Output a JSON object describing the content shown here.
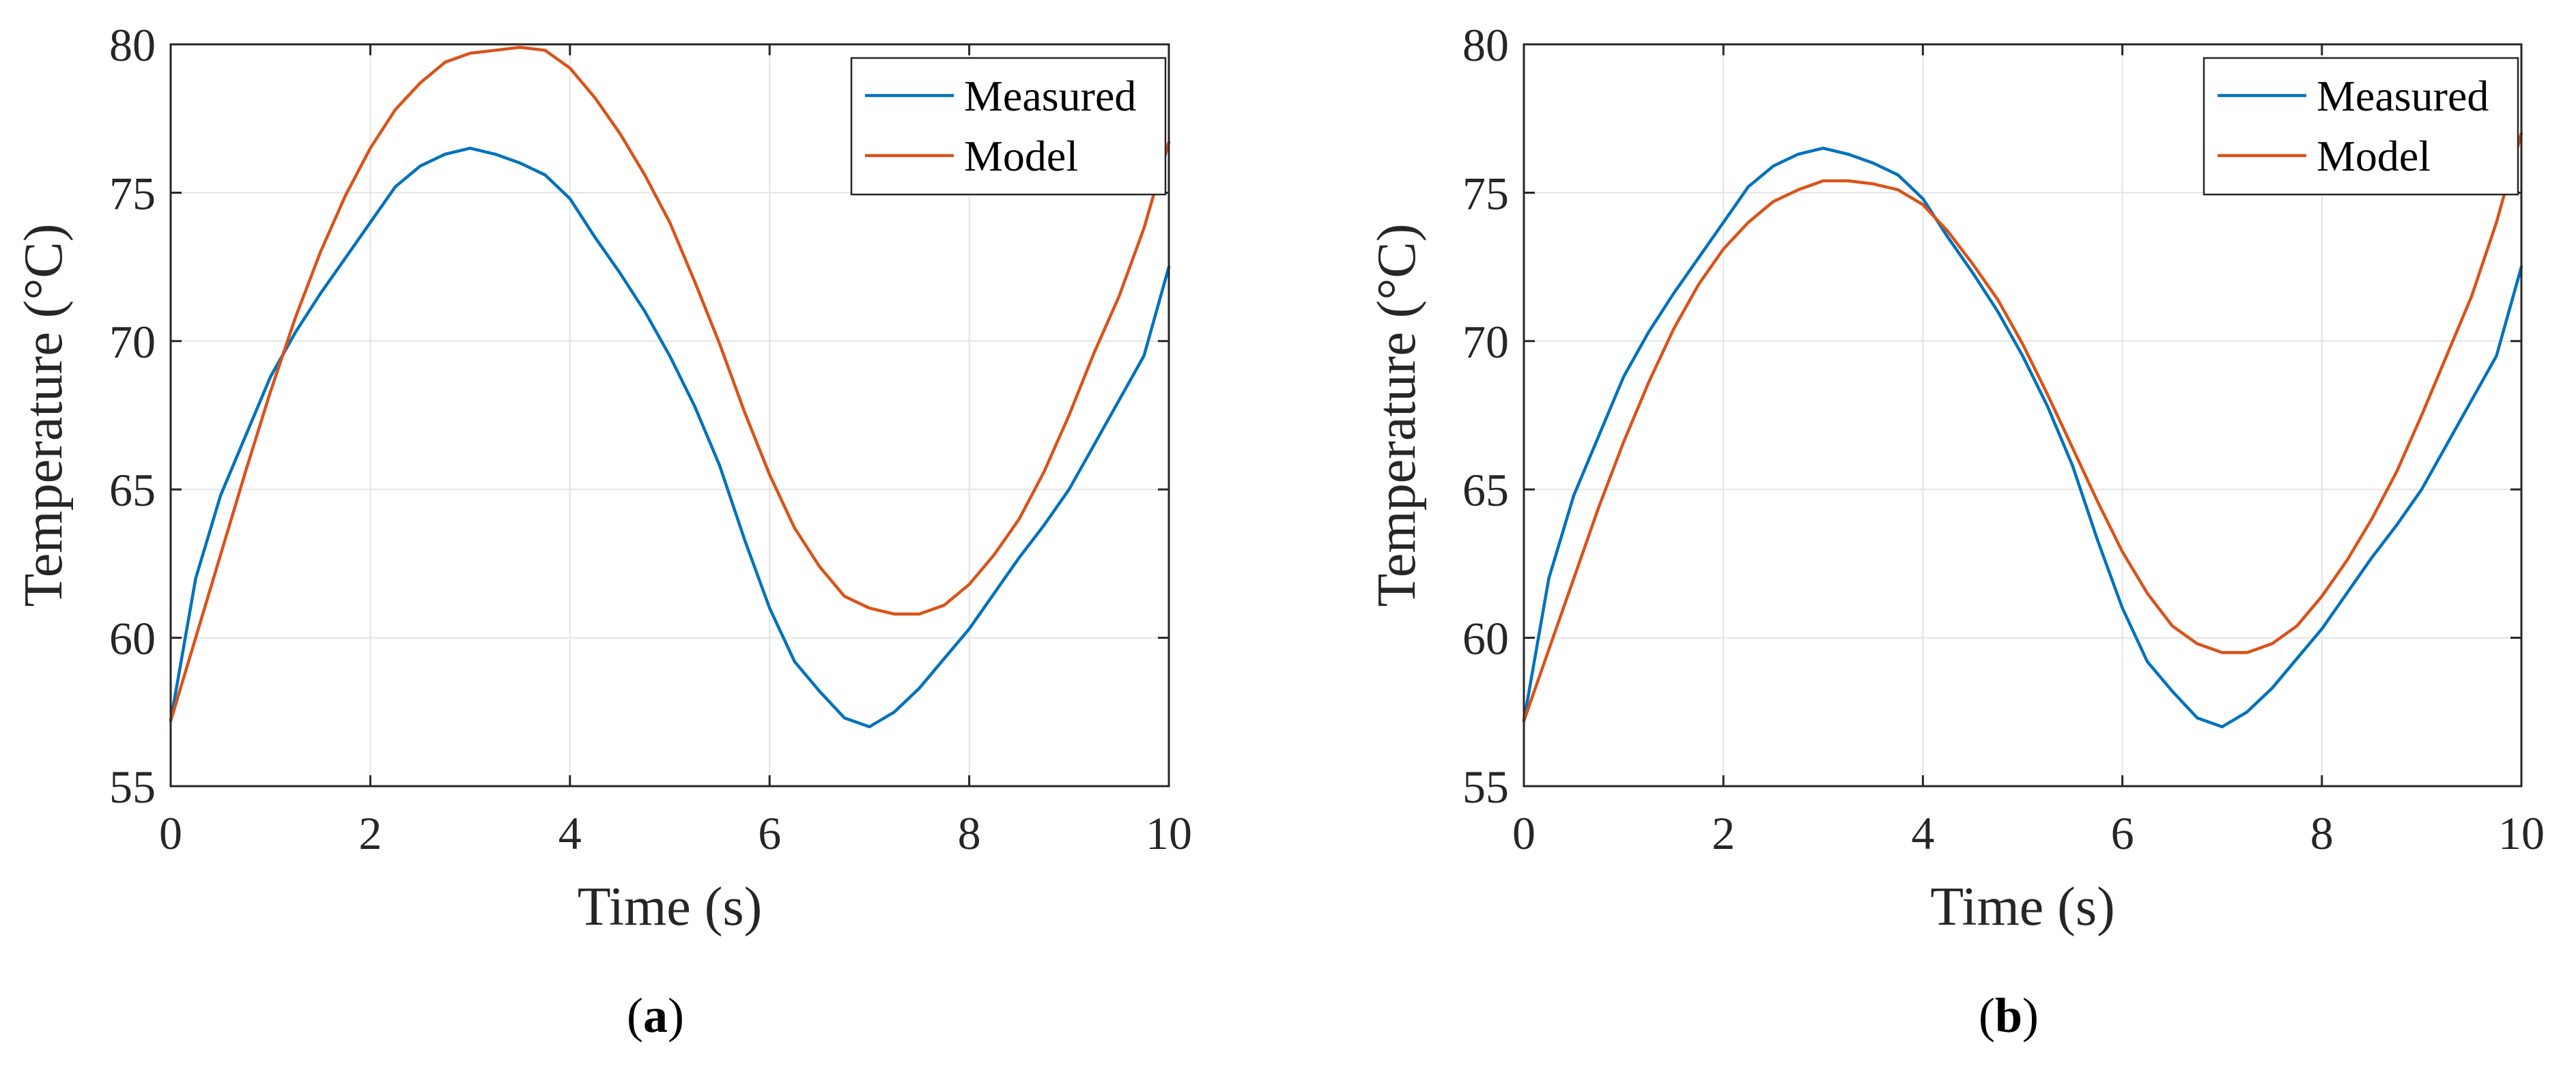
{
  "chart_data": [
    {
      "type": "line",
      "panel_label": "a",
      "xlabel": "Time (s)",
      "ylabel": "Temperature (°C)",
      "xlim": [
        0,
        10
      ],
      "ylim": [
        55,
        80
      ],
      "xticks": [
        0,
        2,
        4,
        6,
        8,
        10
      ],
      "yticks": [
        55,
        60,
        65,
        70,
        75,
        80
      ],
      "grid": true,
      "legend": "top-right",
      "series": [
        {
          "name": "Measured",
          "color": "#0072BD",
          "x": [
            0,
            0.25,
            0.5,
            0.75,
            1.0,
            1.25,
            1.5,
            1.75,
            2.0,
            2.25,
            2.5,
            2.75,
            3.0,
            3.25,
            3.5,
            3.75,
            4.0,
            4.25,
            4.5,
            4.75,
            5.0,
            5.25,
            5.5,
            5.75,
            6.0,
            6.25,
            6.5,
            6.75,
            7.0,
            7.25,
            7.5,
            7.75,
            8.0,
            8.25,
            8.5,
            8.75,
            9.0,
            9.25,
            9.5,
            9.75,
            10.0
          ],
          "y": [
            57.2,
            62.0,
            64.8,
            66.8,
            68.8,
            70.3,
            71.6,
            72.8,
            74.0,
            75.2,
            75.9,
            76.3,
            76.5,
            76.3,
            76.0,
            75.6,
            74.8,
            73.5,
            72.3,
            71.0,
            69.5,
            67.8,
            65.8,
            63.3,
            61.0,
            59.2,
            58.2,
            57.3,
            57.0,
            57.5,
            58.3,
            59.3,
            60.3,
            61.5,
            62.7,
            63.8,
            65.0,
            66.5,
            68.0,
            69.5,
            72.5
          ]
        },
        {
          "name": "Model",
          "color": "#D95319",
          "x": [
            0,
            0.25,
            0.5,
            0.75,
            1.0,
            1.25,
            1.5,
            1.75,
            2.0,
            2.25,
            2.5,
            2.75,
            3.0,
            3.25,
            3.5,
            3.75,
            4.0,
            4.25,
            4.5,
            4.75,
            5.0,
            5.25,
            5.5,
            5.75,
            6.0,
            6.25,
            6.5,
            6.75,
            7.0,
            7.25,
            7.5,
            7.75,
            8.0,
            8.25,
            8.5,
            8.75,
            9.0,
            9.25,
            9.5,
            9.75,
            10.0
          ],
          "y": [
            57.2,
            60.0,
            62.8,
            65.6,
            68.3,
            70.8,
            73.0,
            74.9,
            76.5,
            77.8,
            78.7,
            79.4,
            79.7,
            79.8,
            79.9,
            79.8,
            79.2,
            78.2,
            77.0,
            75.6,
            74.0,
            72.0,
            69.9,
            67.6,
            65.5,
            63.7,
            62.4,
            61.4,
            61.0,
            60.8,
            60.8,
            61.1,
            61.8,
            62.8,
            64.0,
            65.6,
            67.5,
            69.6,
            71.5,
            73.8,
            76.7
          ]
        }
      ]
    },
    {
      "type": "line",
      "panel_label": "b",
      "xlabel": "Time (s)",
      "ylabel": "Temperature (°C)",
      "xlim": [
        0,
        10
      ],
      "ylim": [
        55,
        80
      ],
      "xticks": [
        0,
        2,
        4,
        6,
        8,
        10
      ],
      "yticks": [
        55,
        60,
        65,
        70,
        75,
        80
      ],
      "grid": true,
      "legend": "top-right",
      "series": [
        {
          "name": "Measured",
          "color": "#0072BD",
          "x": [
            0,
            0.25,
            0.5,
            0.75,
            1.0,
            1.25,
            1.5,
            1.75,
            2.0,
            2.25,
            2.5,
            2.75,
            3.0,
            3.25,
            3.5,
            3.75,
            4.0,
            4.25,
            4.5,
            4.75,
            5.0,
            5.25,
            5.5,
            5.75,
            6.0,
            6.25,
            6.5,
            6.75,
            7.0,
            7.25,
            7.5,
            7.75,
            8.0,
            8.25,
            8.5,
            8.75,
            9.0,
            9.25,
            9.5,
            9.75,
            10.0
          ],
          "y": [
            57.2,
            62.0,
            64.8,
            66.8,
            68.8,
            70.3,
            71.6,
            72.8,
            74.0,
            75.2,
            75.9,
            76.3,
            76.5,
            76.3,
            76.0,
            75.6,
            74.8,
            73.5,
            72.3,
            71.0,
            69.5,
            67.8,
            65.8,
            63.3,
            61.0,
            59.2,
            58.2,
            57.3,
            57.0,
            57.5,
            58.3,
            59.3,
            60.3,
            61.5,
            62.7,
            63.8,
            65.0,
            66.5,
            68.0,
            69.5,
            72.5
          ]
        },
        {
          "name": "Model",
          "color": "#D95319",
          "x": [
            0,
            0.25,
            0.5,
            0.75,
            1.0,
            1.25,
            1.5,
            1.75,
            2.0,
            2.25,
            2.5,
            2.75,
            3.0,
            3.25,
            3.5,
            3.75,
            4.0,
            4.25,
            4.5,
            4.75,
            5.0,
            5.25,
            5.5,
            5.75,
            6.0,
            6.25,
            6.5,
            6.75,
            7.0,
            7.25,
            7.5,
            7.75,
            8.0,
            8.25,
            8.5,
            8.75,
            9.0,
            9.25,
            9.5,
            9.75,
            10.0
          ],
          "y": [
            57.2,
            59.6,
            62.0,
            64.4,
            66.6,
            68.6,
            70.4,
            71.9,
            73.1,
            74.0,
            74.7,
            75.1,
            75.4,
            75.4,
            75.3,
            75.1,
            74.6,
            73.7,
            72.6,
            71.4,
            69.9,
            68.2,
            66.4,
            64.6,
            62.9,
            61.5,
            60.4,
            59.8,
            59.5,
            59.5,
            59.8,
            60.4,
            61.4,
            62.6,
            64.0,
            65.6,
            67.5,
            69.5,
            71.5,
            74.0,
            77.0
          ]
        }
      ]
    }
  ]
}
